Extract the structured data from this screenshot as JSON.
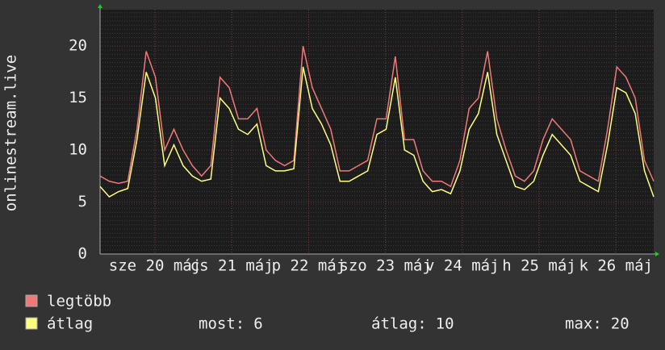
{
  "chart_data": {
    "type": "line",
    "y_label": "onlinestream.live",
    "ylim": [
      0,
      23.5
    ],
    "yticks": [
      0,
      5,
      10,
      15,
      20
    ],
    "grid": true,
    "day_labels": [
      "sze 20 máj",
      "cs 21 máj",
      "p 22 máj",
      "szo 23 máj",
      "v 24 máj",
      "h 25 máj",
      "k 26 máj"
    ],
    "series": [
      {
        "name": "legtöbb",
        "color": "#f07878",
        "values": [
          7.5,
          7,
          6.8,
          7,
          12,
          19.5,
          17,
          10,
          12,
          10,
          8.5,
          7.5,
          8.5,
          17,
          16,
          13,
          13,
          14,
          10,
          9,
          8.5,
          9,
          20,
          16,
          14,
          12,
          8,
          8,
          8.5,
          9,
          13,
          13,
          19,
          11,
          11,
          8,
          7,
          7,
          6.5,
          9,
          14,
          15,
          19.5,
          13,
          10,
          7.5,
          7,
          8,
          11,
          13,
          12,
          11,
          8,
          7.5,
          7,
          12,
          18,
          17,
          15,
          9,
          7
        ]
      },
      {
        "name": "átlag",
        "color": "#ffff80",
        "values": [
          6.5,
          5.5,
          6,
          6.3,
          11,
          17.5,
          15,
          8.5,
          10.5,
          8.5,
          7.5,
          7,
          7.2,
          15,
          14,
          12,
          11.5,
          12.5,
          8.5,
          8,
          8,
          8.2,
          18,
          14,
          12.5,
          10.5,
          7,
          7,
          7.5,
          8,
          11.5,
          12,
          17,
          10,
          9.5,
          7,
          6,
          6.2,
          5.8,
          8,
          12,
          13.5,
          17.5,
          11.5,
          9,
          6.5,
          6.2,
          7,
          9.5,
          11.5,
          10.5,
          9.5,
          7,
          6.5,
          6,
          10.5,
          16,
          15.5,
          13.5,
          8,
          5.5
        ]
      }
    ],
    "stats": [
      {
        "label": "most:",
        "value": 6
      },
      {
        "label": "átlag:",
        "value": 10
      },
      {
        "label": "max:",
        "value": 20
      }
    ]
  }
}
